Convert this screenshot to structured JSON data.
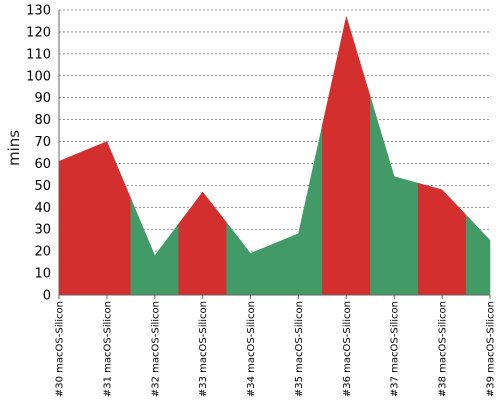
{
  "chart_data": {
    "type": "area",
    "ylabel": "mins",
    "ylim": [
      0,
      130
    ],
    "yticks": [
      0,
      10,
      20,
      30,
      40,
      50,
      60,
      70,
      80,
      90,
      100,
      110,
      120,
      130
    ],
    "grid": true,
    "categories": [
      "#30 macOS-Silicon",
      "#31 macOS-Silicon",
      "#32 macOS-Silicon",
      "#33 macOS-Silicon",
      "#34 macOS-Silicon",
      "#35 macOS-Silicon",
      "#36 macOS-Silicon",
      "#37 macOS-Silicon",
      "#38 macOS-Silicon",
      "#39 macOS-Silicon"
    ],
    "values": [
      61,
      70,
      18,
      47,
      19,
      28,
      127,
      54,
      48,
      25
    ],
    "status": [
      "failed",
      "failed",
      "passed",
      "failed",
      "passed",
      "passed",
      "failed",
      "passed",
      "failed",
      "passed"
    ],
    "colors": {
      "failed": "#d32f2f",
      "passed": "#429a67"
    }
  }
}
